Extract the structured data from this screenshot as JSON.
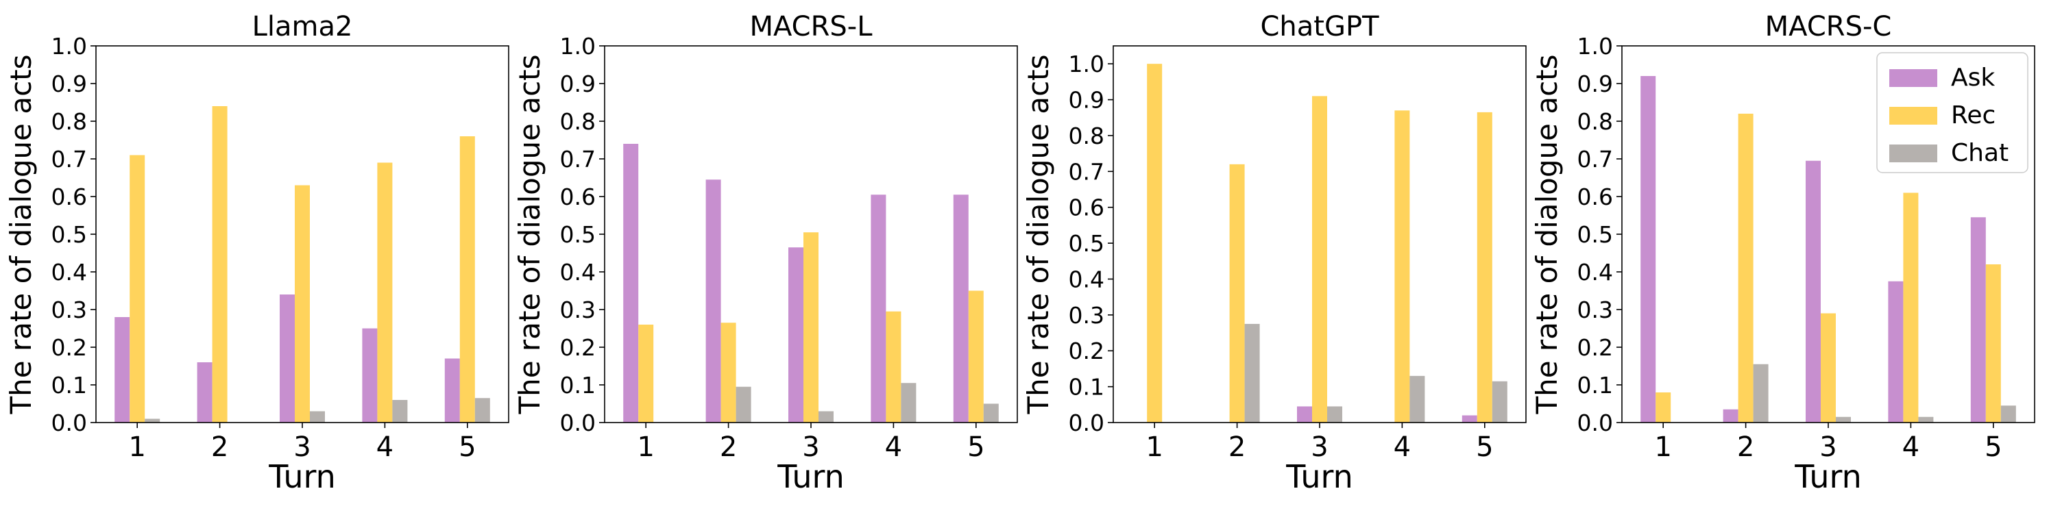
{
  "legend": [
    {
      "name": "Ask",
      "color": "#c78fcf"
    },
    {
      "name": "Rec",
      "color": "#ffd35c"
    },
    {
      "name": "Chat",
      "color": "#b5b1ae"
    }
  ],
  "chart_data": [
    {
      "type": "bar",
      "title": "Llama2",
      "xlabel": "Turn",
      "ylabel": "The rate of dialogue acts",
      "categories": [
        "1",
        "2",
        "3",
        "4",
        "5"
      ],
      "ylim": [
        0,
        1.0
      ],
      "yticks": [
        "0.0",
        "0.1",
        "0.2",
        "0.3",
        "0.4",
        "0.5",
        "0.6",
        "0.7",
        "0.8",
        "0.9",
        "1.0"
      ],
      "series": [
        {
          "name": "Ask",
          "values": [
            0.28,
            0.16,
            0.34,
            0.25,
            0.17
          ]
        },
        {
          "name": "Rec",
          "values": [
            0.71,
            0.84,
            0.63,
            0.69,
            0.76
          ]
        },
        {
          "name": "Chat",
          "values": [
            0.01,
            0.0,
            0.03,
            0.06,
            0.065
          ]
        }
      ]
    },
    {
      "type": "bar",
      "title": "MACRS-L",
      "xlabel": "Turn",
      "ylabel": "The rate of dialogue acts",
      "categories": [
        "1",
        "2",
        "3",
        "4",
        "5"
      ],
      "ylim": [
        0,
        1.0
      ],
      "yticks": [
        "0.0",
        "0.1",
        "0.2",
        "0.3",
        "0.4",
        "0.5",
        "0.6",
        "0.7",
        "0.8",
        "0.9",
        "1.0"
      ],
      "series": [
        {
          "name": "Ask",
          "values": [
            0.74,
            0.645,
            0.465,
            0.605,
            0.605
          ]
        },
        {
          "name": "Rec",
          "values": [
            0.26,
            0.265,
            0.505,
            0.295,
            0.35
          ]
        },
        {
          "name": "Chat",
          "values": [
            0.0,
            0.095,
            0.03,
            0.105,
            0.05
          ]
        }
      ]
    },
    {
      "type": "bar",
      "title": "ChatGPT",
      "xlabel": "Turn",
      "ylabel": "The rate of dialogue acts",
      "categories": [
        "1",
        "2",
        "3",
        "4",
        "5"
      ],
      "ylim": [
        0,
        1.05
      ],
      "yticks": [
        "0.0",
        "0.1",
        "0.2",
        "0.3",
        "0.4",
        "0.5",
        "0.6",
        "0.7",
        "0.8",
        "0.9",
        "1.0"
      ],
      "series": [
        {
          "name": "Ask",
          "values": [
            0.0,
            0.0,
            0.045,
            0.0,
            0.02
          ]
        },
        {
          "name": "Rec",
          "values": [
            1.0,
            0.72,
            0.91,
            0.87,
            0.865
          ]
        },
        {
          "name": "Chat",
          "values": [
            0.0,
            0.275,
            0.045,
            0.13,
            0.115
          ]
        }
      ]
    },
    {
      "type": "bar",
      "title": "MACRS-C",
      "xlabel": "Turn",
      "ylabel": "The rate of dialogue acts",
      "categories": [
        "1",
        "2",
        "3",
        "4",
        "5"
      ],
      "ylim": [
        0,
        1.0
      ],
      "yticks": [
        "0.0",
        "0.1",
        "0.2",
        "0.3",
        "0.4",
        "0.5",
        "0.6",
        "0.7",
        "0.8",
        "0.9",
        "1.0"
      ],
      "legend_position": "top-right",
      "series": [
        {
          "name": "Ask",
          "values": [
            0.92,
            0.035,
            0.695,
            0.375,
            0.545
          ]
        },
        {
          "name": "Rec",
          "values": [
            0.08,
            0.82,
            0.29,
            0.61,
            0.42
          ]
        },
        {
          "name": "Chat",
          "values": [
            0.0,
            0.155,
            0.015,
            0.015,
            0.045
          ]
        }
      ]
    }
  ]
}
